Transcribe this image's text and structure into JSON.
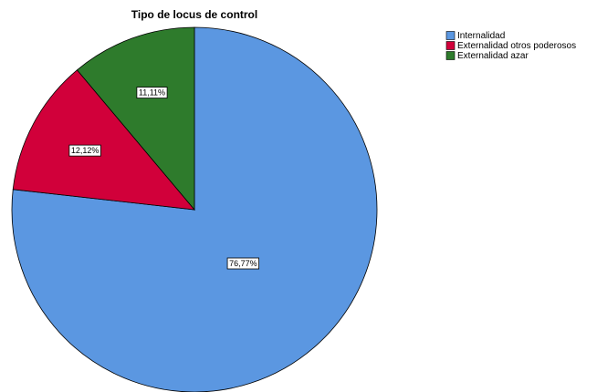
{
  "chart_data": {
    "type": "pie",
    "title": "Tipo de locus de control",
    "categories": [
      "Internalidad",
      "Externalidad otros poderosos",
      "Externalidad azar"
    ],
    "values": [
      76.77,
      12.12,
      11.11
    ],
    "value_labels": [
      "76,77%",
      "12,12%",
      "11,11%"
    ],
    "colors": [
      "#5b97e1",
      "#d1003a",
      "#2e7b2c"
    ],
    "legend": "top-right"
  }
}
